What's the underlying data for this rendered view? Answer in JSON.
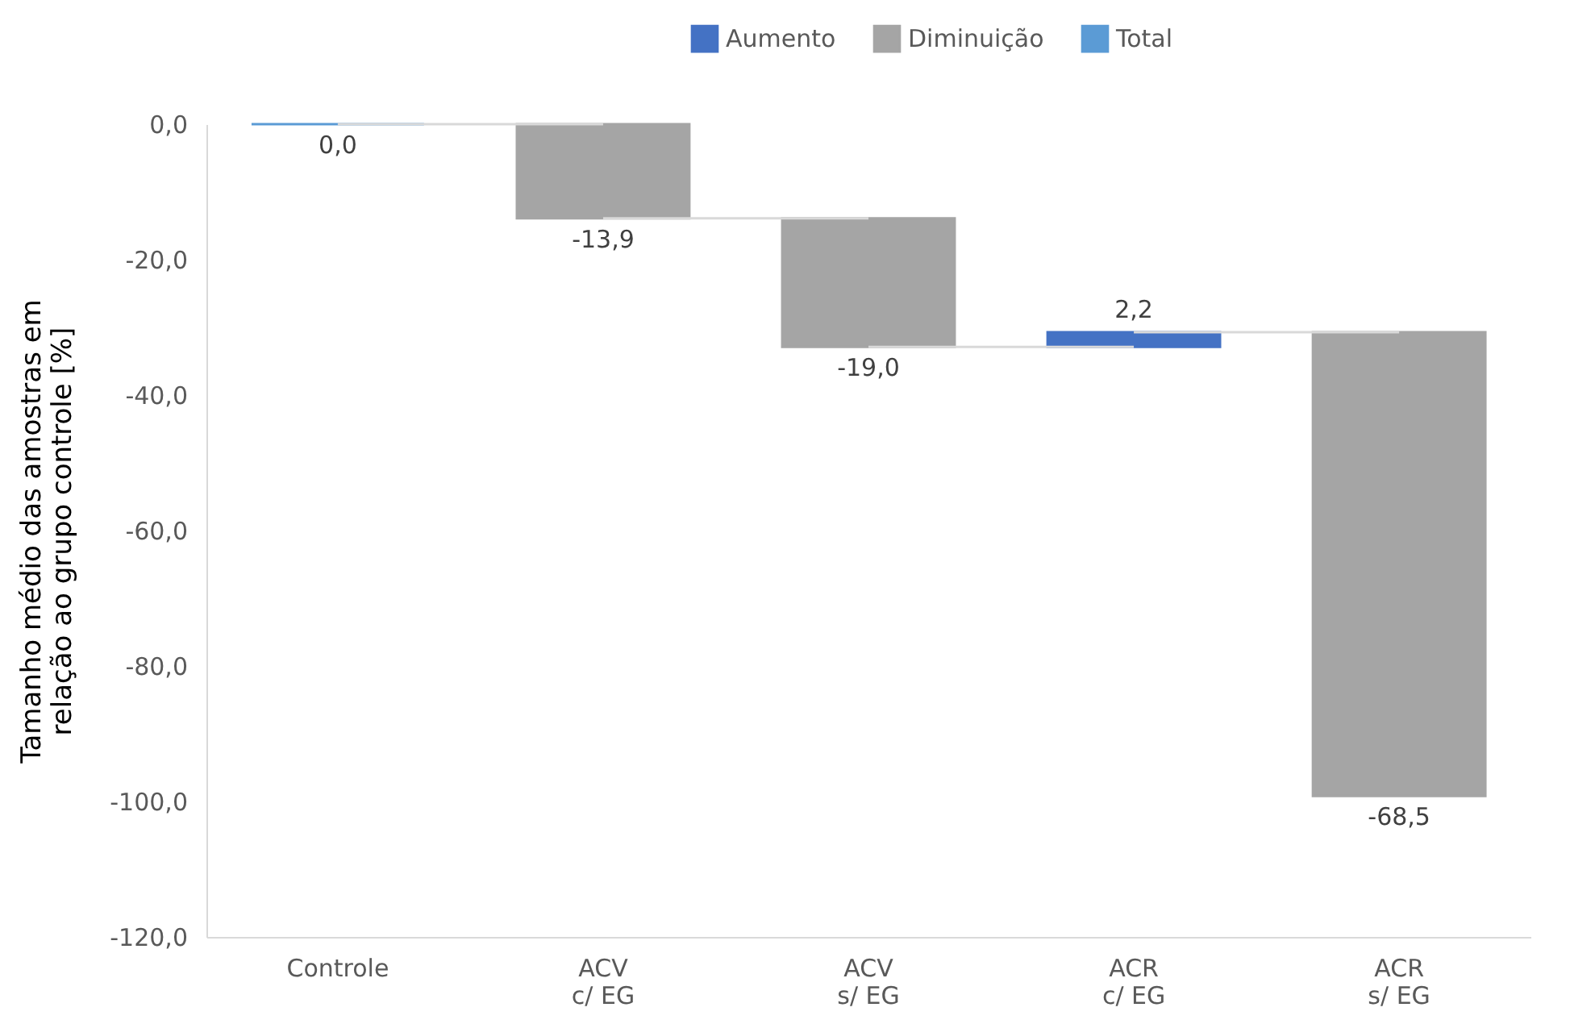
{
  "chart_data": {
    "type": "bar",
    "ylabel": "Tamanho médio das amostras em\nrelação ao grupo controle [%]",
    "categories": [
      "Controle",
      "ACV\nc/ EG",
      "ACV\ns/ EG",
      "ACR\nc/ EG",
      "ACR\ns/ EG"
    ],
    "series": [
      {
        "name": "Aumento",
        "color": "#4472c4",
        "values": [
          null,
          null,
          null,
          2.2,
          null
        ],
        "base": [
          null,
          null,
          null,
          -32.9,
          null
        ],
        "value_labels": [
          null,
          null,
          null,
          "2,2",
          null
        ]
      },
      {
        "name": "Diminuição",
        "color": "#a5a5a5",
        "values": [
          null,
          -13.9,
          -19.0,
          null,
          -68.5
        ],
        "base": [
          null,
          0,
          -13.9,
          null,
          -30.7
        ],
        "value_labels": [
          null,
          "-13,9",
          "-19,0",
          null,
          "-68,5"
        ]
      },
      {
        "name": "Total",
        "color": "#5b9bd5",
        "values": [
          0,
          null,
          null,
          null,
          null
        ],
        "value_labels": [
          "0,0",
          null,
          null,
          null,
          null
        ]
      }
    ],
    "ylim": [
      -120,
      0
    ],
    "yticks": [
      {
        "value": -120,
        "label": "-120,0"
      },
      {
        "value": -100,
        "label": "-100,0"
      },
      {
        "value": -80,
        "label": "-80,0"
      },
      {
        "value": -60,
        "label": "-60,0"
      },
      {
        "value": -40,
        "label": "-40,0"
      },
      {
        "value": -20,
        "label": "-20,0"
      },
      {
        "value": 0,
        "label": "0,0"
      }
    ],
    "grid": false,
    "legend": "top"
  }
}
